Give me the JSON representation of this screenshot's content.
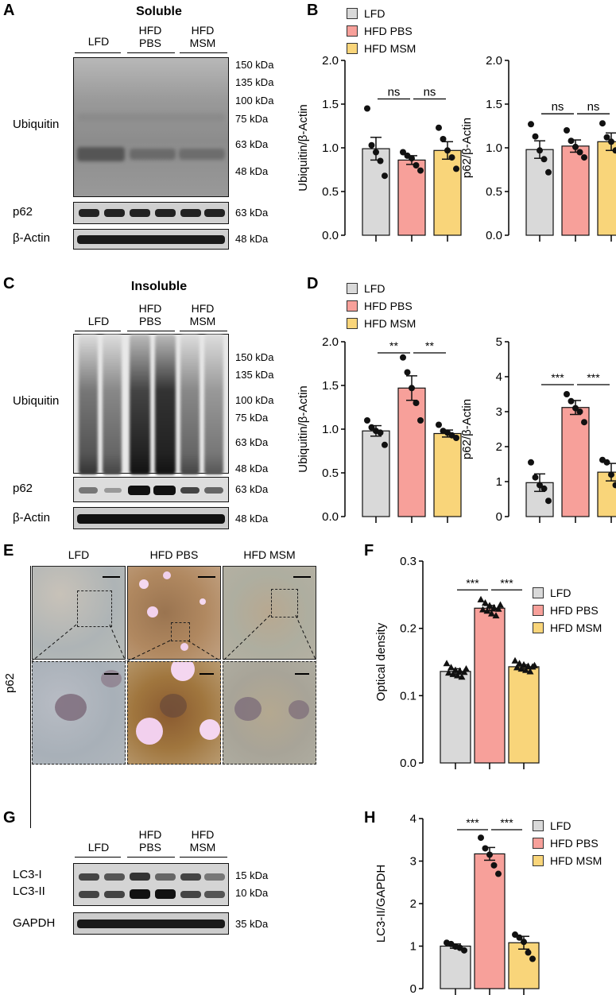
{
  "panels": {
    "A": "A",
    "B": "B",
    "C": "C",
    "D": "D",
    "E": "E",
    "F": "F",
    "G": "G",
    "H": "H"
  },
  "groups": [
    "LFD",
    "HFD PBS",
    "HFD MSM"
  ],
  "lanes": {
    "lfd": "LFD",
    "hfd": "HFD",
    "pbs": "PBS",
    "msm": "MSM"
  },
  "colors": {
    "LFD": "#d9d9d9",
    "HFD PBS": "#f7a09a",
    "HFD MSM": "#f9d57a"
  },
  "blot_A": {
    "title": "Soluble",
    "rows": [
      "Ubiquitin",
      "p62",
      "β-Actin"
    ],
    "markers": [
      "150 kDa",
      "135 kDa",
      "100 kDa",
      "75 kDa",
      "63 kDa",
      "48 kDa"
    ],
    "p62_marker": "63 kDa",
    "actin_marker": "48 kDa"
  },
  "blot_C": {
    "title": "Insoluble",
    "rows": [
      "Ubiquitin",
      "p62",
      "β-Actin"
    ],
    "markers": [
      "150 kDa",
      "135 kDa",
      "100 kDa",
      "75 kDa",
      "63 kDa",
      "48 kDa"
    ],
    "p62_marker": "63 kDa",
    "actin_marker": "48 kDa"
  },
  "blot_G": {
    "rows": [
      "LC3-I",
      "LC3-II",
      "GAPDH"
    ],
    "markers": [
      "15 kDa",
      "10 kDa",
      "35 kDa"
    ]
  },
  "micro_E": {
    "headers": [
      "LFD",
      "HFD PBS",
      "HFD MSM"
    ],
    "row_label": "p62"
  },
  "chart_data": [
    {
      "id": "B1",
      "type": "bar",
      "categories": [
        "LFD",
        "HFD PBS",
        "HFD MSM"
      ],
      "values": [
        0.99,
        0.86,
        0.97
      ],
      "errors": [
        0.13,
        0.05,
        0.1
      ],
      "ylabel": "Ubiquitin/β-Actin",
      "ylim": [
        0,
        2.0
      ],
      "yticks": [
        "0.0",
        "0.5",
        "1.0",
        "1.5",
        "2.0"
      ],
      "points": [
        [
          1.45,
          1.03,
          0.95,
          0.85,
          0.68
        ],
        [
          0.95,
          0.91,
          0.88,
          0.8,
          0.74
        ],
        [
          1.23,
          1.1,
          0.97,
          0.89,
          0.76
        ]
      ],
      "marker": "circle",
      "sig": [
        "ns",
        "ns"
      ]
    },
    {
      "id": "B2",
      "type": "bar",
      "categories": [
        "LFD",
        "HFD PBS",
        "HFD MSM"
      ],
      "values": [
        0.98,
        1.02,
        1.07
      ],
      "errors": [
        0.1,
        0.07,
        0.1
      ],
      "ylabel": "p62/β-Actin",
      "ylim": [
        0,
        2.0
      ],
      "yticks": [
        "0.0",
        "0.5",
        "1.0",
        "1.5",
        "2.0"
      ],
      "points": [
        [
          1.27,
          1.13,
          0.97,
          0.87,
          0.72
        ],
        [
          1.2,
          1.08,
          1.01,
          0.95,
          0.89
        ],
        [
          1.28,
          1.12,
          1.07,
          0.97,
          0.91
        ]
      ],
      "marker": "circle",
      "sig": [
        "ns",
        "ns"
      ]
    },
    {
      "id": "D1",
      "type": "bar",
      "categories": [
        "LFD",
        "HFD PBS",
        "HFD MSM"
      ],
      "values": [
        0.98,
        1.47,
        0.95
      ],
      "errors": [
        0.06,
        0.14,
        0.04
      ],
      "ylabel": "Ubiquitin/β-Actin",
      "ylim": [
        0,
        2.0
      ],
      "yticks": [
        "0.0",
        "0.5",
        "1.0",
        "1.5",
        "2.0"
      ],
      "points": [
        [
          1.1,
          1.02,
          0.98,
          0.96,
          0.82
        ],
        [
          1.82,
          1.65,
          1.47,
          1.3,
          1.1
        ],
        [
          1.05,
          0.98,
          0.96,
          0.93,
          0.9
        ]
      ],
      "marker": "circle",
      "sig": [
        "**",
        "**"
      ]
    },
    {
      "id": "D2",
      "type": "bar",
      "categories": [
        "LFD",
        "HFD PBS",
        "HFD MSM"
      ],
      "values": [
        0.97,
        3.12,
        1.27
      ],
      "errors": [
        0.25,
        0.2,
        0.25
      ],
      "ylabel": "p62/β-Actin",
      "ylim": [
        0,
        5
      ],
      "yticks": [
        "0",
        "1",
        "2",
        "3",
        "4",
        "5"
      ],
      "points": [
        [
          1.55,
          1.12,
          0.9,
          0.8,
          0.45
        ],
        [
          3.5,
          3.3,
          3.1,
          3.0,
          2.7
        ],
        [
          1.62,
          1.55,
          1.2,
          0.9,
          0.72
        ]
      ],
      "marker": "circle",
      "sig": [
        "***",
        "***"
      ]
    },
    {
      "id": "F",
      "type": "bar",
      "categories": [
        "LFD",
        "HFD PBS",
        "HFD MSM"
      ],
      "values": [
        0.136,
        0.23,
        0.143
      ],
      "errors": [
        0.004,
        0.004,
        0.003
      ],
      "ylabel": "Optical density",
      "ylim": [
        0,
        0.3
      ],
      "yticks": [
        "0.0",
        "0.1",
        "0.2",
        "0.3"
      ],
      "points": [
        [
          0.148,
          0.142,
          0.138,
          0.137,
          0.135,
          0.134,
          0.132,
          0.13,
          0.128,
          0.14
        ],
        [
          0.243,
          0.238,
          0.234,
          0.231,
          0.229,
          0.228,
          0.226,
          0.222,
          0.219,
          0.235
        ],
        [
          0.152,
          0.148,
          0.146,
          0.144,
          0.143,
          0.142,
          0.14,
          0.138,
          0.136,
          0.145
        ]
      ],
      "marker": "triangle",
      "sig": [
        "***",
        "***"
      ],
      "legend": [
        "LFD",
        "HFD PBS",
        "HFD MSM"
      ]
    },
    {
      "id": "H",
      "type": "bar",
      "categories": [
        "LFD",
        "HFD PBS",
        "HFD MSM"
      ],
      "values": [
        1.0,
        3.17,
        1.08
      ],
      "errors": [
        0.05,
        0.15,
        0.15
      ],
      "ylabel": "LC3-II/GAPDH",
      "ylim": [
        0,
        4
      ],
      "yticks": [
        "0",
        "1",
        "2",
        "3",
        "4"
      ],
      "points": [
        [
          1.08,
          1.05,
          0.99,
          0.96,
          0.9
        ],
        [
          3.55,
          3.3,
          3.15,
          2.9,
          2.7
        ],
        [
          1.27,
          1.2,
          1.1,
          0.85,
          0.7
        ]
      ],
      "marker": "circle",
      "sig": [
        "***",
        "***"
      ],
      "legend": [
        "LFD",
        "HFD PBS",
        "HFD MSM"
      ]
    }
  ]
}
